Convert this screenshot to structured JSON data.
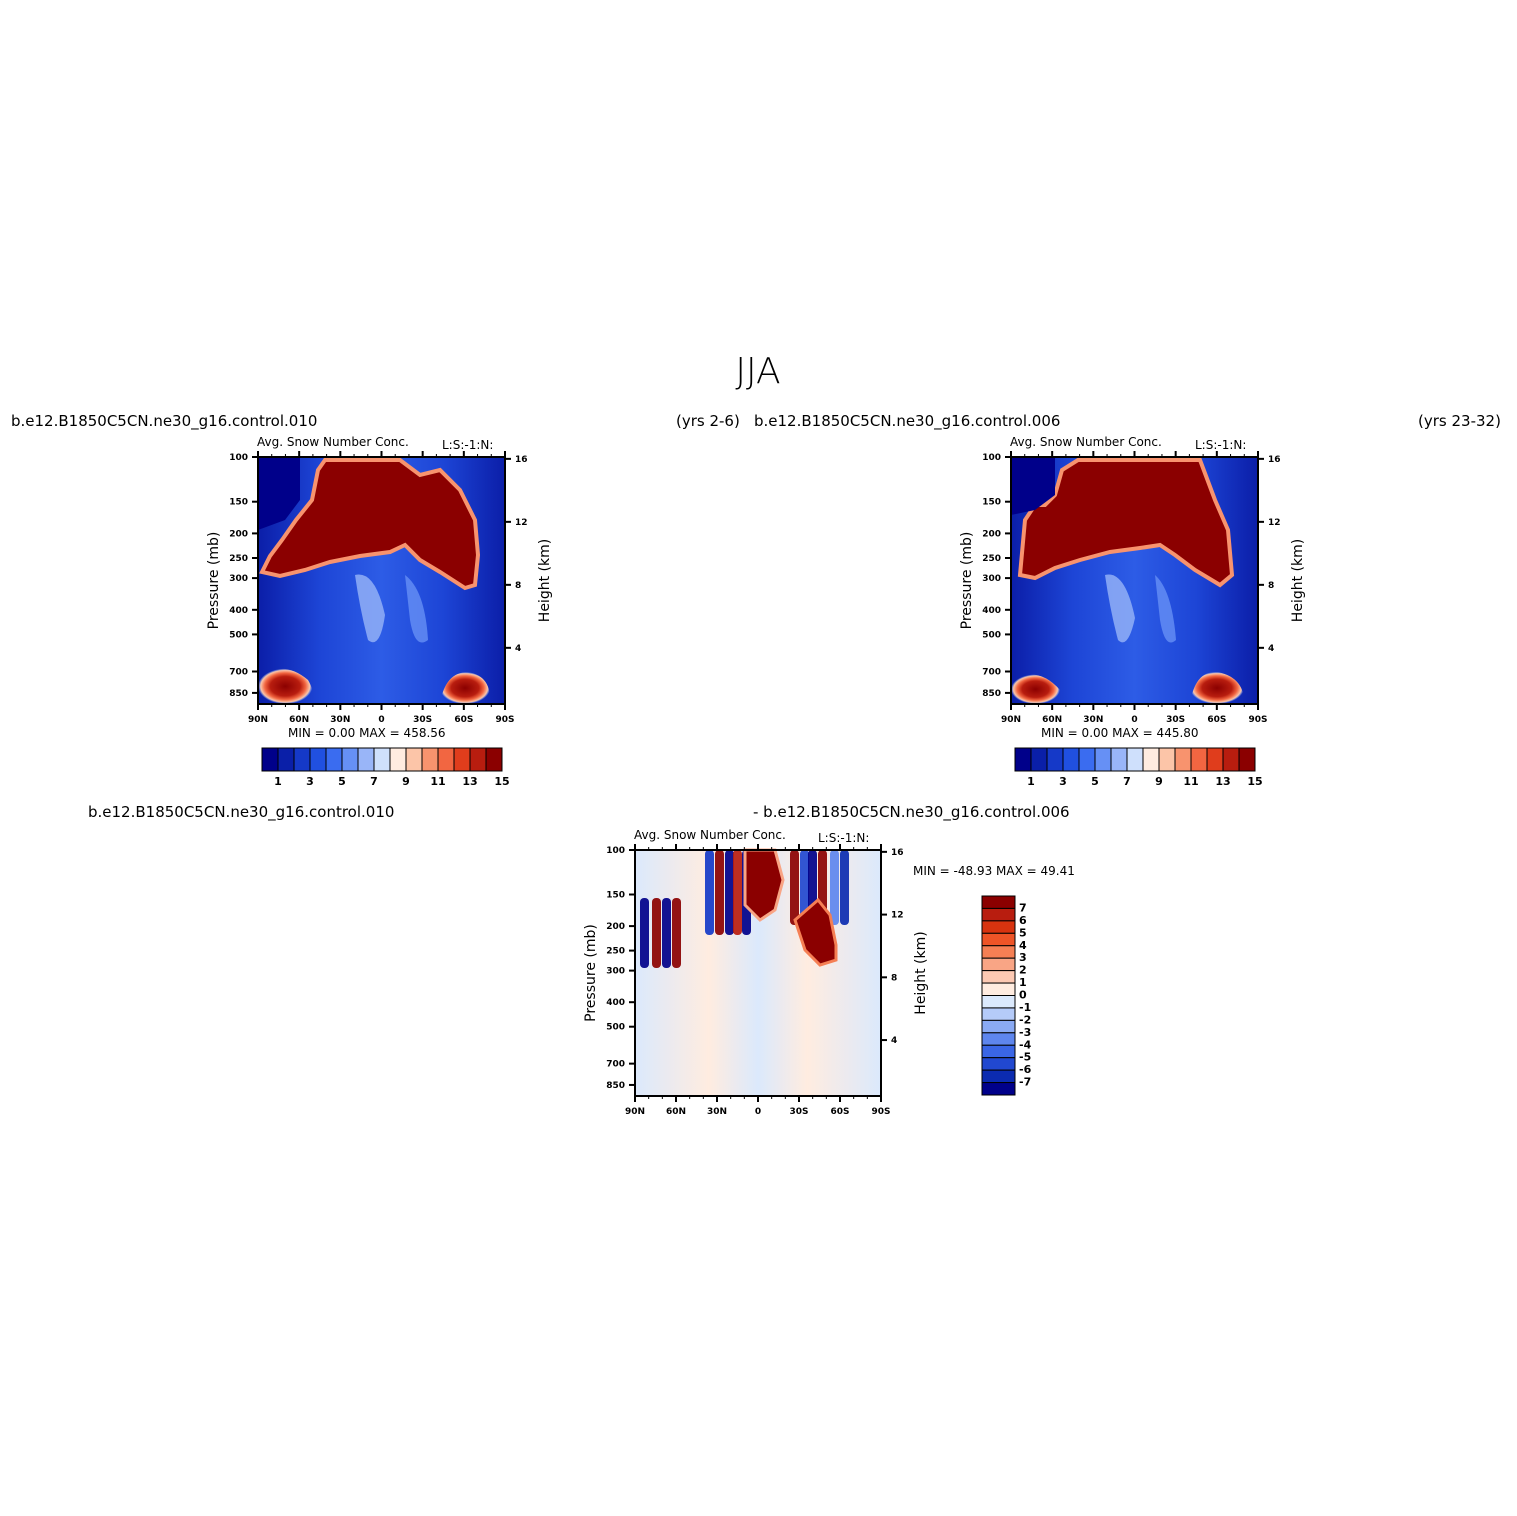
{
  "main_title": "JJA",
  "palette_abs": [
    "#00008a",
    "#0a1fa8",
    "#1539c8",
    "#2050e0",
    "#3a6cf0",
    "#6690f5",
    "#99b5f8",
    "#cfe0fc",
    "#ffece0",
    "#fcc5a8",
    "#f8936e",
    "#f26641",
    "#e03d1c",
    "#b81d0f",
    "#8b0000"
  ],
  "palette_diff": [
    "#8b0000",
    "#b81d0f",
    "#d8330f",
    "#ee5427",
    "#f57f54",
    "#f9a585",
    "#fcc9b3",
    "#ffece0",
    "#dbe9fc",
    "#b5cbf9",
    "#8aaaf4",
    "#5e86ee",
    "#3a66e6",
    "#2148d0",
    "#0b2bb0",
    "#00008a"
  ],
  "charts": [
    {
      "id": "left",
      "case_label": "b.e12.B1850C5CN.ne30_g16.control.010",
      "years_label": "(yrs  2-6)",
      "subtitle_left": "Avg.  Snow  Number  Conc.",
      "subtitle_right": "L:S:-1:N:",
      "ylabel": "Pressure (mb)",
      "ylabel_right": "Height (km)",
      "minmax": "MIN =     0.00    MAX =  458.56",
      "colorbar_labels": [
        "1",
        "3",
        "5",
        "7",
        "9",
        "11",
        "13",
        "15"
      ]
    },
    {
      "id": "right",
      "case_label": "b.e12.B1850C5CN.ne30_g16.control.006",
      "years_label": "(yrs  23-32)",
      "subtitle_left": "Avg.  Snow  Number  Conc.",
      "subtitle_right": "L:S:-1:N:",
      "ylabel": "Pressure (mb)",
      "ylabel_right": "Height (km)",
      "minmax": "MIN =     0.00    MAX =  445.80",
      "colorbar_labels": [
        "1",
        "3",
        "5",
        "7",
        "9",
        "11",
        "13",
        "15"
      ]
    },
    {
      "id": "diff",
      "case_label_left": "b.e12.B1850C5CN.ne30_g16.control.010",
      "case_label_right": "-  b.e12.B1850C5CN.ne30_g16.control.006",
      "subtitle_left": "Avg.  Snow  Number  Conc.",
      "subtitle_right": "L:S:-1:N:",
      "ylabel": "Pressure (mb)",
      "ylabel_right": "Height (km)",
      "minmax": "MIN = -48.93   MAX =   49.41",
      "colorbar_labels": [
        "7",
        "6",
        "5",
        "4",
        "3",
        "2",
        "1",
        "0",
        "-1",
        "-2",
        "-3",
        "-4",
        "-5",
        "-6",
        "-7"
      ]
    }
  ],
  "chart_data": [
    {
      "type": "heatmap",
      "title": "Avg. Snow Number Conc.",
      "x": [
        "90N",
        "60N",
        "30N",
        "0",
        "30S",
        "60S",
        "90S"
      ],
      "y_pressure_mb": [
        100,
        150,
        200,
        250,
        300,
        400,
        500,
        700,
        850
      ],
      "y_height_km": [
        16,
        12,
        8,
        4
      ],
      "levels": [
        1,
        2,
        3,
        4,
        5,
        6,
        7,
        8,
        9,
        10,
        11,
        12,
        13,
        14,
        15
      ],
      "min": 0.0,
      "max": 458.56
    },
    {
      "type": "heatmap",
      "title": "Avg. Snow Number Conc.",
      "x": [
        "90N",
        "60N",
        "30N",
        "0",
        "30S",
        "60S",
        "90S"
      ],
      "y_pressure_mb": [
        100,
        150,
        200,
        250,
        300,
        400,
        500,
        700,
        850
      ],
      "y_height_km": [
        16,
        12,
        8,
        4
      ],
      "levels": [
        1,
        2,
        3,
        4,
        5,
        6,
        7,
        8,
        9,
        10,
        11,
        12,
        13,
        14,
        15
      ],
      "min": 0.0,
      "max": 445.8
    },
    {
      "type": "heatmap",
      "title": "Avg. Snow Number Conc.",
      "x": [
        "90N",
        "60N",
        "30N",
        "0",
        "30S",
        "60S",
        "90S"
      ],
      "y_pressure_mb": [
        100,
        150,
        200,
        250,
        300,
        400,
        500,
        700,
        850
      ],
      "y_height_km": [
        16,
        12,
        8,
        4
      ],
      "levels": [
        -7,
        -6,
        -5,
        -4,
        -3,
        -2,
        -1,
        0,
        1,
        2,
        3,
        4,
        5,
        6,
        7
      ],
      "min": -48.93,
      "max": 49.41
    }
  ]
}
